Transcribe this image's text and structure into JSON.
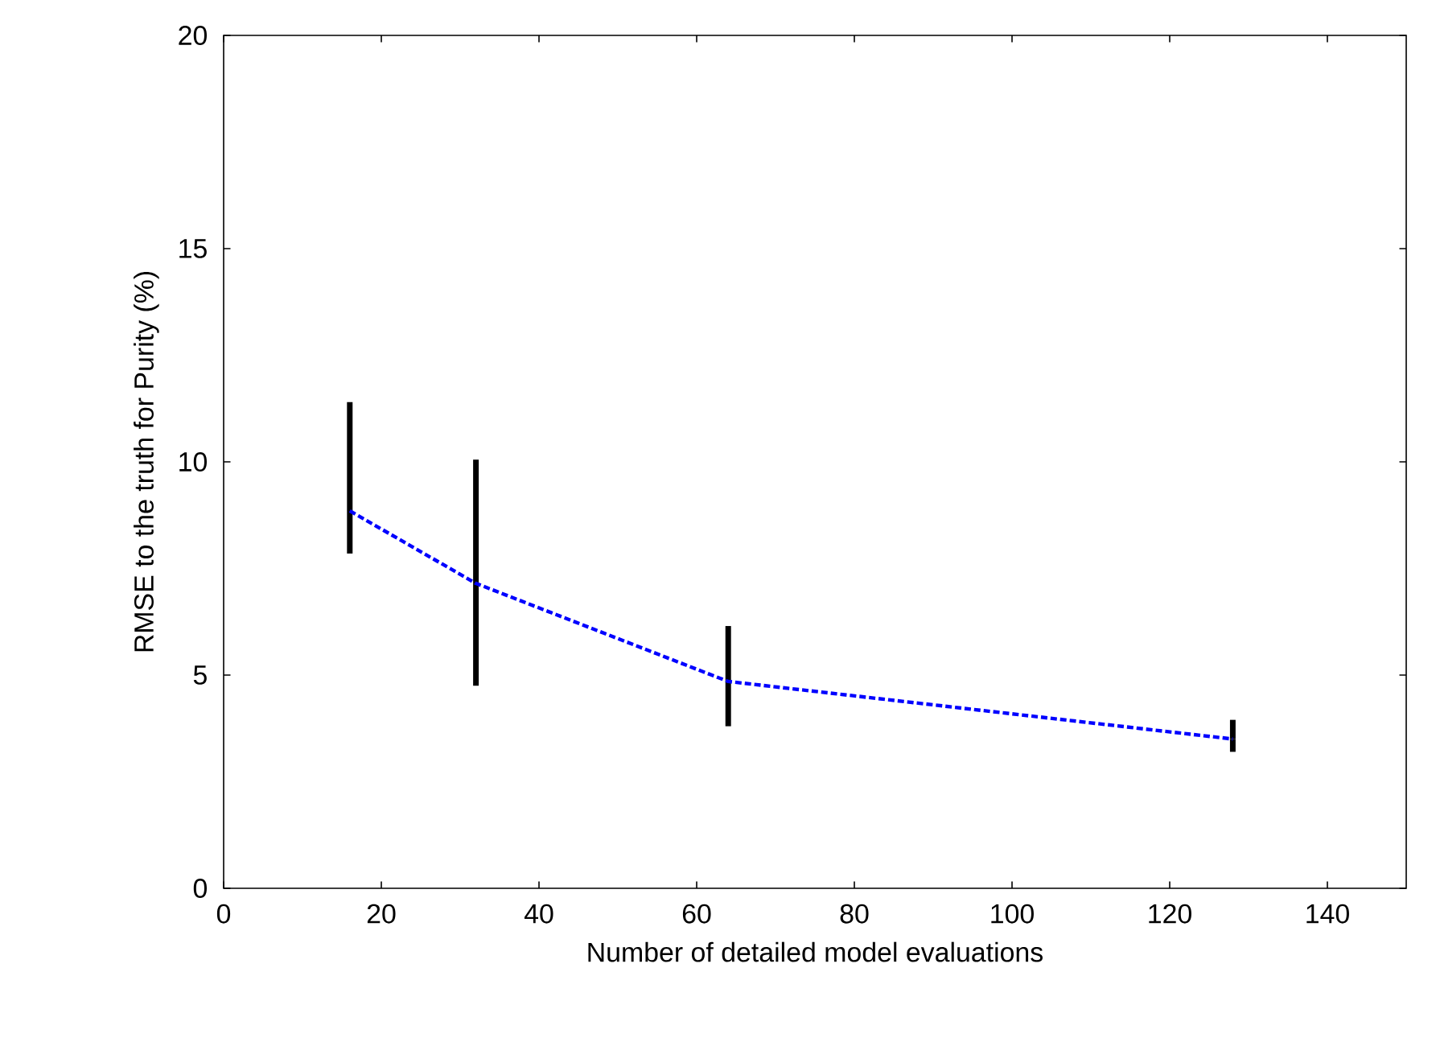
{
  "chart_data": {
    "type": "line",
    "xlabel": "Number of detailed model evaluations",
    "ylabel": "RMSE to the truth for Purity (%)",
    "x": [
      16,
      32,
      64,
      128
    ],
    "series": [
      {
        "color": "#0000ff",
        "values": [
          8.85,
          7.15,
          4.85,
          3.5
        ],
        "errors": [
          [
            7.85,
            11.4
          ],
          [
            4.75,
            10.05
          ],
          [
            3.8,
            6.15
          ],
          [
            3.2,
            3.95
          ]
        ]
      }
    ],
    "xlim": [
      0,
      150
    ],
    "ylim": [
      0,
      20
    ],
    "xticks": [
      0,
      20,
      40,
      60,
      80,
      100,
      120,
      140
    ],
    "yticks": [
      0,
      5,
      10,
      15,
      20
    ],
    "grid": false,
    "marker": "none",
    "line_style": "dashed"
  }
}
